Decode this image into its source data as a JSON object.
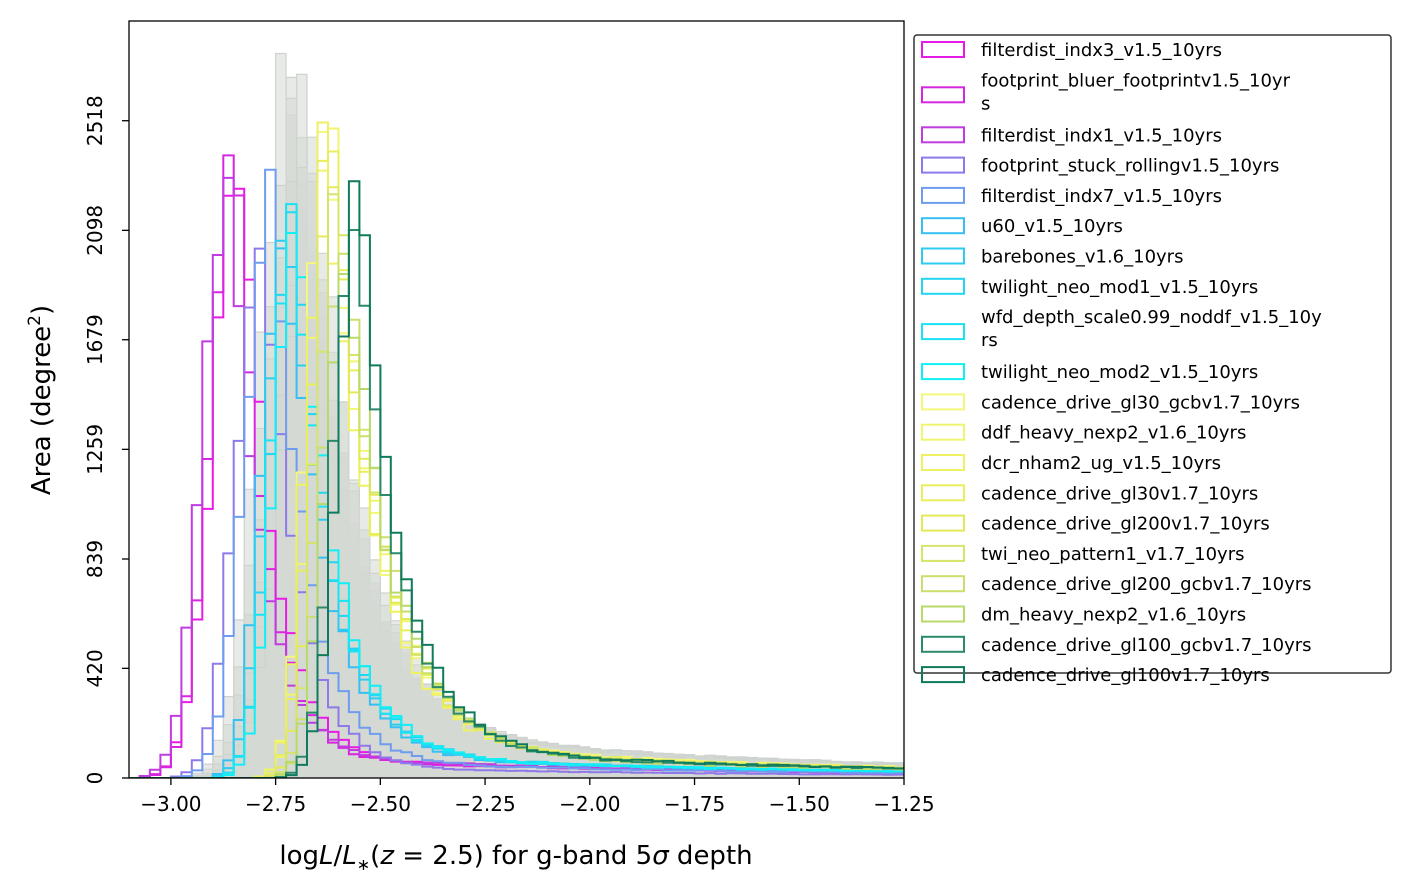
{
  "chart_data": {
    "type": "histogram-step",
    "xlabel": "logL/L∗(z = 2.5) for g-band 5σ depth",
    "xlabel_parts": {
      "log": "log",
      "L": "L",
      "slash": "/",
      "Lstar": "L",
      "star": "∗",
      "zpre": "(",
      "z": "z",
      "eq": " = 2.5) for g-band 5",
      "sigma": "σ",
      "rest": " depth"
    },
    "ylabel": "Area (degree2)",
    "ylabel_parts": {
      "main": "Area (degree",
      "sup": "2",
      "close": ")"
    },
    "xlim": [
      -3.1,
      -1.25
    ],
    "ylim": [
      0,
      2900
    ],
    "xticks": [
      -3.0,
      -2.75,
      -2.5,
      -2.25,
      -2.0,
      -1.75,
      -1.5,
      -1.25
    ],
    "xtick_labels": [
      "−3.00",
      "−2.75",
      "−2.50",
      "−2.25",
      "−2.00",
      "−1.75",
      "−1.50",
      "−1.25"
    ],
    "yticks": [
      0,
      420,
      839,
      1259,
      1679,
      2098,
      2518
    ],
    "ytick_labels": [
      "0",
      "420",
      "839",
      "1259",
      "1679",
      "2098",
      "2518"
    ],
    "grid": false,
    "legend_position": "outside-right-top",
    "bin_width": 0.025,
    "background_histograms": {
      "color": "#d4d8d4",
      "count": 6,
      "peak_x": -2.68,
      "peak_y": 2720,
      "sigma_left": 0.07,
      "tail_scale": 0.22
    },
    "series": [
      {
        "name": "filterdist_indx3_v1.5_10yrs",
        "color": "#e81ae8",
        "peak_x": -2.83,
        "peak_y": 2440,
        "sigma_left": 0.065,
        "tail_scale": 0.13,
        "tail_level": 0.03
      },
      {
        "name": "footprint_bluer_footprintv1.5_10yrs",
        "color": "#d726df",
        "peak_x": -2.84,
        "peak_y": 2480,
        "sigma_left": 0.06,
        "tail_scale": 0.12,
        "tail_level": 0.03
      },
      {
        "name": "filterdist_indx1_v1.5_10yrs",
        "color": "#c03be0",
        "peak_x": -2.86,
        "peak_y": 2390,
        "sigma_left": 0.06,
        "tail_scale": 0.13,
        "tail_level": 0.035
      },
      {
        "name": "footprint_stuck_rollingv1.5_10yrs",
        "color": "#8f79ea",
        "peak_x": -2.78,
        "peak_y": 2180,
        "sigma_left": 0.06,
        "tail_scale": 0.14,
        "tail_level": 0.02
      },
      {
        "name": "filterdist_indx7_v1.5_10yrs",
        "color": "#6f9cee",
        "peak_x": -2.76,
        "peak_y": 2230,
        "sigma_left": 0.06,
        "tail_scale": 0.15,
        "tail_level": 0.03
      },
      {
        "name": "u60_v1.5_10yrs",
        "color": "#36bff2",
        "peak_x": -2.73,
        "peak_y": 2180,
        "sigma_left": 0.05,
        "tail_scale": 0.17,
        "tail_level": 0.04
      },
      {
        "name": "barebones_v1.6_10yrs",
        "color": "#2ecbf0",
        "peak_x": -2.72,
        "peak_y": 2200,
        "sigma_left": 0.05,
        "tail_scale": 0.17,
        "tail_level": 0.04
      },
      {
        "name": "twilight_neo_mod1_v1.5_10yrs",
        "color": "#22d6f2",
        "peak_x": -2.71,
        "peak_y": 2220,
        "sigma_left": 0.05,
        "tail_scale": 0.17,
        "tail_level": 0.04
      },
      {
        "name": "wfd_depth_scale0.99_noddf_v1.5_10yrs",
        "color": "#18e2f4",
        "peak_x": -2.71,
        "peak_y": 2150,
        "sigma_left": 0.05,
        "tail_scale": 0.17,
        "tail_level": 0.04
      },
      {
        "name": "twilight_neo_mod2_v1.5_10yrs",
        "color": "#10eef6",
        "peak_x": -2.7,
        "peak_y": 2180,
        "sigma_left": 0.05,
        "tail_scale": 0.17,
        "tail_level": 0.04
      },
      {
        "name": "cadence_drive_gl30_gcbv1.7_10yrs",
        "color": "#f3f77c",
        "peak_x": -2.63,
        "peak_y": 2640,
        "sigma_left": 0.045,
        "tail_scale": 0.2,
        "tail_level": 0.05
      },
      {
        "name": "ddf_heavy_nexp2_v1.6_10yrs",
        "color": "#f1f56e",
        "peak_x": -2.62,
        "peak_y": 2550,
        "sigma_left": 0.045,
        "tail_scale": 0.2,
        "tail_level": 0.05
      },
      {
        "name": "dcr_nham2_ug_v1.5_10yrs",
        "color": "#eef262",
        "peak_x": -2.63,
        "peak_y": 2450,
        "sigma_left": 0.045,
        "tail_scale": 0.2,
        "tail_level": 0.05
      },
      {
        "name": "cadence_drive_gl30v1.7_10yrs",
        "color": "#e8ef5a",
        "peak_x": -2.62,
        "peak_y": 2480,
        "sigma_left": 0.045,
        "tail_scale": 0.2,
        "tail_level": 0.05
      },
      {
        "name": "cadence_drive_gl200v1.7_10yrs",
        "color": "#e2ea58",
        "peak_x": -2.61,
        "peak_y": 2380,
        "sigma_left": 0.045,
        "tail_scale": 0.2,
        "tail_level": 0.05
      },
      {
        "name": "twi_neo_pattern1_v1.7_10yrs",
        "color": "#d6e468",
        "peak_x": -2.6,
        "peak_y": 2300,
        "sigma_left": 0.045,
        "tail_scale": 0.2,
        "tail_level": 0.05
      },
      {
        "name": "cadence_drive_gl200_gcbv1.7_10yrs",
        "color": "#cadf6c",
        "peak_x": -2.59,
        "peak_y": 2200,
        "sigma_left": 0.045,
        "tail_scale": 0.2,
        "tail_level": 0.05
      },
      {
        "name": "dm_heavy_nexp2_v1.6_10yrs",
        "color": "#b9d96a",
        "peak_x": -2.58,
        "peak_y": 2050,
        "sigma_left": 0.05,
        "tail_scale": 0.2,
        "tail_level": 0.05
      },
      {
        "name": "cadence_drive_gl100_gcbv1.7_10yrs",
        "color": "#2a8a6a",
        "peak_x": -2.56,
        "peak_y": 2170,
        "sigma_left": 0.05,
        "tail_scale": 0.18,
        "tail_level": 0.05
      },
      {
        "name": "cadence_drive_gl100v1.7_10yrs",
        "color": "#0f7a5c",
        "peak_x": -2.55,
        "peak_y": 2220,
        "sigma_left": 0.05,
        "tail_scale": 0.18,
        "tail_level": 0.05
      }
    ]
  }
}
